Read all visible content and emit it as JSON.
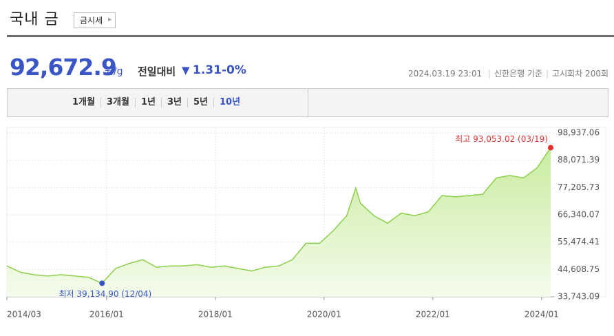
{
  "header": {
    "title": "국내 금",
    "button": "금시세"
  },
  "price": {
    "value": "92,672.9",
    "unit": "원/g",
    "change_label": "전일대비",
    "change": "1.31",
    "change_pct": "-0%"
  },
  "info": {
    "datetime": "2024.03.19 23:01",
    "bank": "신한은행 기준",
    "round": "고시회차 200회"
  },
  "tabs": [
    "1개월",
    "3개월",
    "1년",
    "3년",
    "5년",
    "10년"
  ],
  "selected_tab": "10년",
  "chart_data": {
    "type": "area",
    "color": "#8ccf4a",
    "x": [
      "2014/03",
      "2014/06",
      "2014/09",
      "2014/12",
      "2015/03",
      "2015/06",
      "2015/09",
      "2015/12",
      "2016/03",
      "2016/06",
      "2016/09",
      "2016/12",
      "2017/03",
      "2017/06",
      "2017/09",
      "2017/12",
      "2018/03",
      "2018/06",
      "2018/09",
      "2018/12",
      "2019/03",
      "2019/06",
      "2019/09",
      "2019/12",
      "2020/03",
      "2020/06",
      "2020/08",
      "2020/09",
      "2020/12",
      "2021/03",
      "2021/06",
      "2021/09",
      "2021/12",
      "2022/03",
      "2022/06",
      "2022/09",
      "2022/12",
      "2023/03",
      "2023/06",
      "2023/09",
      "2023/12",
      "2024/03"
    ],
    "values": [
      46000,
      43500,
      42500,
      42000,
      42500,
      42000,
      41500,
      39134.9,
      45000,
      47000,
      48500,
      45500,
      46000,
      46000,
      46500,
      45500,
      46000,
      45000,
      44000,
      45500,
      46000,
      48500,
      55000,
      55000,
      60000,
      66000,
      77000,
      71000,
      66000,
      63000,
      67000,
      66000,
      67500,
      74000,
      73500,
      74000,
      74500,
      81000,
      82000,
      81000,
      85000,
      93053.02
    ],
    "xlim": [
      "2014/03",
      "2024/03"
    ],
    "xticks": [
      "2014/03",
      "2016/01",
      "2018/01",
      "2020/01",
      "2022/01",
      "2024/01"
    ],
    "ylim": [
      33743.09,
      98937.06
    ],
    "yticks": [
      {
        "value": 33743.09,
        "label": "33,743.09"
      },
      {
        "value": 44608.75,
        "label": "44,608.75"
      },
      {
        "value": 55474.41,
        "label": "55,474.41"
      },
      {
        "value": 66340.07,
        "label": "66,340.07"
      },
      {
        "value": 77205.73,
        "label": "77,205.73"
      },
      {
        "value": 88071.39,
        "label": "88,071.39"
      },
      {
        "value": 98937.06,
        "label": "98,937.06"
      }
    ],
    "grid": true,
    "max_label": "최고 93,053.02 (03/19)",
    "min_label": "최저 39,134.90 (12/04)"
  }
}
